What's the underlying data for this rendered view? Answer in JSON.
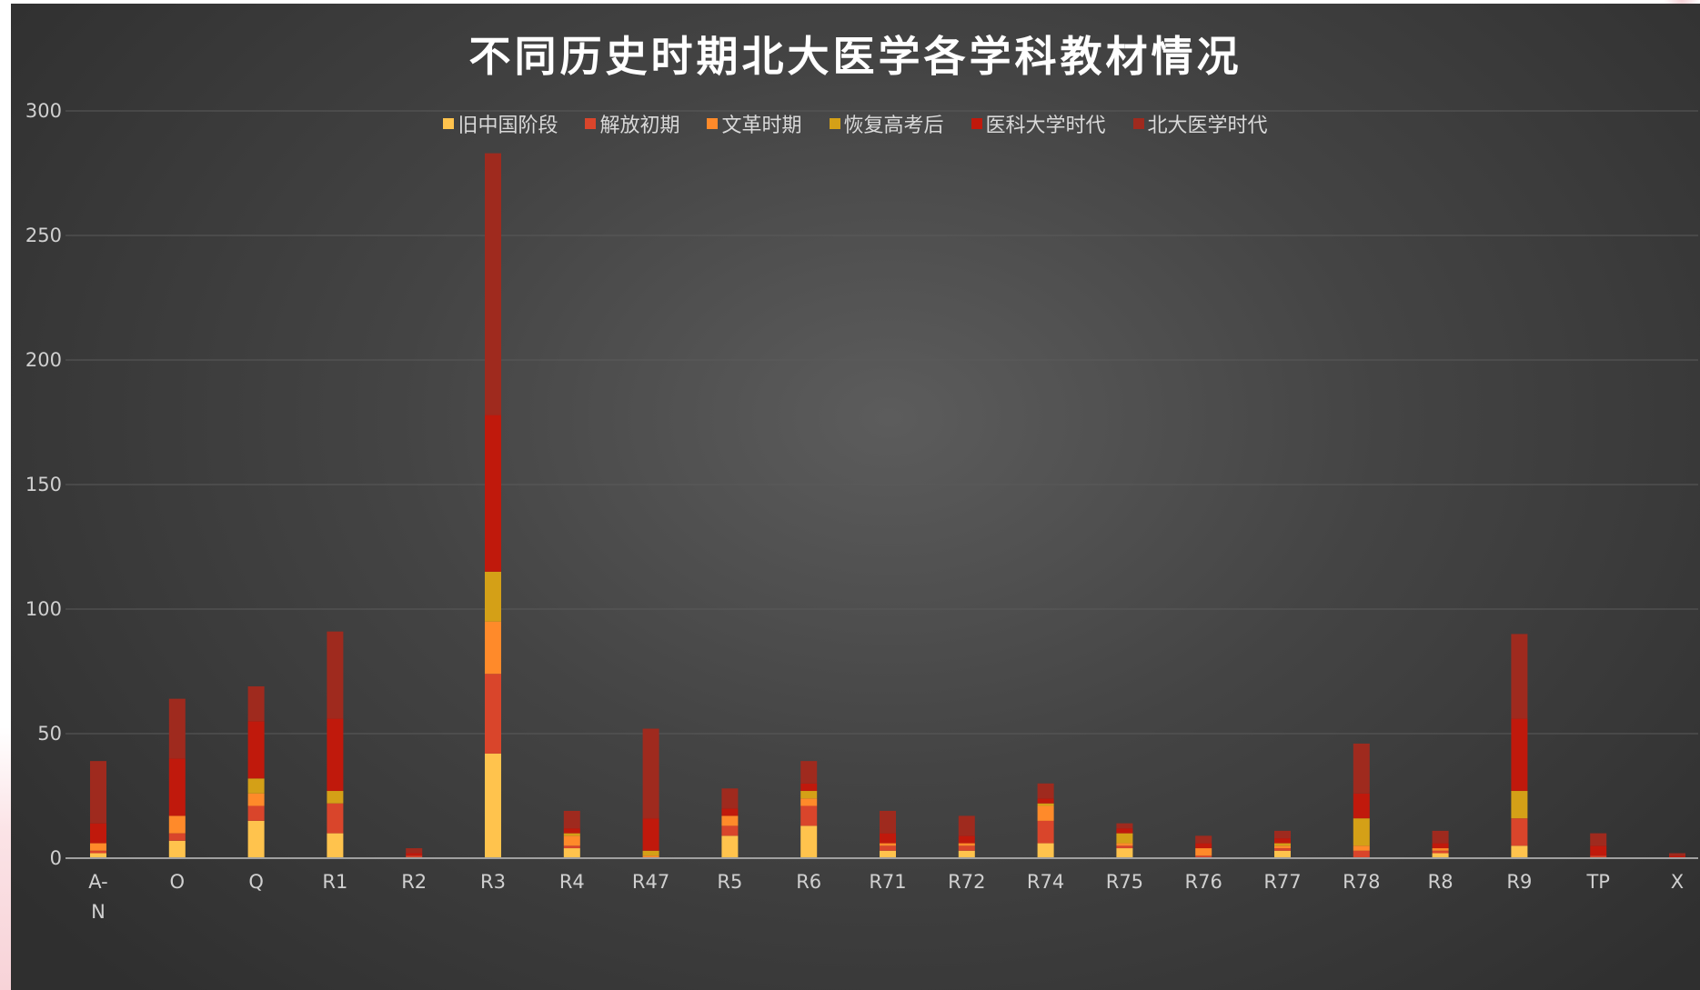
{
  "chart_data": {
    "type": "bar",
    "stacked": true,
    "title": "不同历史时期北大医学各学科教材情况",
    "xlabel": "",
    "ylabel": "",
    "ylim": [
      0,
      300
    ],
    "yticks": [
      "0",
      "50",
      "100",
      "150",
      "200",
      "250",
      "300"
    ],
    "grid": true,
    "legend_position": "top",
    "categories": [
      "A-N",
      "O",
      "Q",
      "R1",
      "R2",
      "R3",
      "R4",
      "R47",
      "R5",
      "R6",
      "R71",
      "R72",
      "R74",
      "R75",
      "R76",
      "R77",
      "R78",
      "R8",
      "R9",
      "TP",
      "X"
    ],
    "series": [
      {
        "name": "旧中国阶段",
        "color": "#ffc34d",
        "values": [
          2,
          7,
          15,
          10,
          0,
          42,
          4,
          0,
          9,
          13,
          3,
          3,
          6,
          4,
          0,
          3,
          0,
          2,
          5,
          0,
          0
        ]
      },
      {
        "name": "解放初期",
        "color": "#d9452b",
        "values": [
          1,
          3,
          6,
          12,
          1,
          32,
          1,
          0,
          4,
          8,
          2,
          2,
          9,
          1,
          1,
          1,
          3,
          1,
          11,
          1,
          0
        ]
      },
      {
        "name": "文革时期",
        "color": "#ff8a2a",
        "values": [
          3,
          7,
          5,
          0,
          0,
          21,
          4,
          1,
          4,
          3,
          1,
          1,
          6,
          1,
          3,
          1,
          2,
          1,
          0,
          0,
          0
        ]
      },
      {
        "name": "恢复高考后",
        "color": "#d4a017",
        "values": [
          0,
          0,
          6,
          5,
          0,
          20,
          1,
          2,
          0,
          3,
          0,
          0,
          1,
          4,
          0,
          1,
          11,
          0,
          11,
          0,
          0
        ]
      },
      {
        "name": "医科大学时代",
        "color": "#c0190c",
        "values": [
          8,
          23,
          23,
          29,
          1,
          63,
          2,
          13,
          3,
          3,
          4,
          3,
          2,
          2,
          2,
          2,
          10,
          2,
          29,
          4,
          1
        ]
      },
      {
        "name": "北大医学时代",
        "color": "#9f2a1e",
        "values": [
          25,
          24,
          14,
          35,
          2,
          105,
          7,
          36,
          8,
          9,
          9,
          8,
          6,
          2,
          3,
          3,
          20,
          5,
          34,
          5,
          1
        ]
      }
    ]
  }
}
